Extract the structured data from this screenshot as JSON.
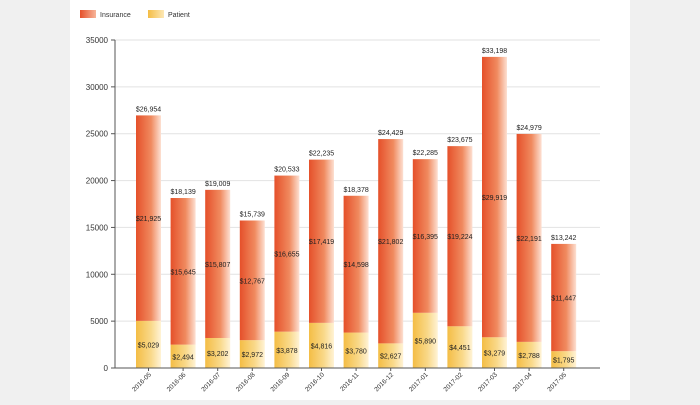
{
  "legend": [
    {
      "label": "Insurance",
      "color": "#e8552a"
    },
    {
      "label": "Patient",
      "color": "#f5c24a"
    }
  ],
  "chart_data": {
    "type": "bar",
    "stacked": true,
    "categories": [
      "2016-05",
      "2016-06",
      "2016-07",
      "2016-08",
      "2016-09",
      "2016-10",
      "2016-11",
      "2016-12",
      "2017-01",
      "2017-02",
      "2017-03",
      "2017-04",
      "2017-05"
    ],
    "series": [
      {
        "name": "Patient",
        "values": [
          5029,
          2494,
          3202,
          2972,
          3878,
          4816,
          3780,
          2627,
          5890,
          4451,
          3279,
          2788,
          1795
        ],
        "labels": [
          "$5,029",
          "$2,494",
          "$3,202",
          "$2,972",
          "$3,878",
          "$4,816",
          "$3,780",
          "$2,627",
          "$5,890",
          "$4,451",
          "$3,279",
          "$2,788",
          "$1,795"
        ]
      },
      {
        "name": "Insurance",
        "values": [
          21925,
          15645,
          15807,
          12767,
          16655,
          17419,
          14598,
          21802,
          16395,
          19224,
          29919,
          22191,
          11447
        ],
        "labels": [
          "$21,925",
          "$15,645",
          "$15,807",
          "$12,767",
          "$16,655",
          "$17,419",
          "$14,598",
          "$21,802",
          "$16,395",
          "$19,224",
          "$29,919",
          "$22,191",
          "$11,447"
        ]
      }
    ],
    "totals": [
      26954,
      18139,
      19009,
      15739,
      20533,
      22235,
      18378,
      24429,
      22285,
      23675,
      33198,
      24979,
      13242
    ],
    "total_labels": [
      "$26,954",
      "$18,139",
      "$19,009",
      "$15,739",
      "$20,533",
      "$22,235",
      "$18,378",
      "$24,429",
      "$22,285",
      "$23,675",
      "$33,198",
      "$24,979",
      "$13,242"
    ],
    "yticks": [
      "0",
      "5000",
      "10000",
      "15000",
      "20000",
      "25000",
      "30000",
      "35000"
    ],
    "ylim": [
      0,
      35000
    ],
    "grid": true,
    "legend_position": "top-left",
    "title": "",
    "xlabel": "",
    "ylabel": ""
  }
}
